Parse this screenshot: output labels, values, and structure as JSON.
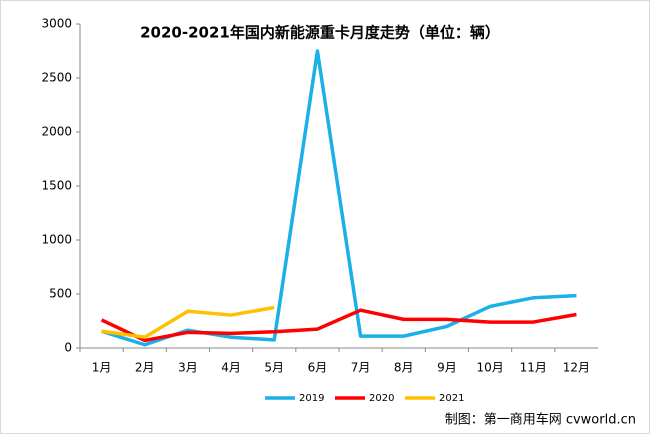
{
  "chart_data": {
    "type": "line",
    "title": "2020-2021年国内新能源重卡月度走势（单位：辆）",
    "categories": [
      "1月",
      "2月",
      "3月",
      "4月",
      "5月",
      "6月",
      "7月",
      "8月",
      "9月",
      "10月",
      "11月",
      "12月"
    ],
    "series": [
      {
        "name": "2019",
        "color": "#1ab0e8",
        "values": [
          155,
          30,
          165,
          100,
          75,
          2750,
          110,
          110,
          200,
          385,
          465,
          485
        ]
      },
      {
        "name": "2020",
        "color": "#ff0000",
        "values": [
          260,
          70,
          145,
          135,
          150,
          175,
          350,
          265,
          265,
          240,
          240,
          310
        ]
      },
      {
        "name": "2021",
        "color": "#ffc000",
        "values": [
          155,
          100,
          340,
          305,
          375,
          null,
          null,
          null,
          null,
          null,
          null,
          null
        ]
      }
    ],
    "ylim": [
      0,
      3000
    ],
    "yticks": [
      0,
      500,
      1000,
      1500,
      2000,
      2500,
      3000
    ],
    "legend": "bottom",
    "source": "制图：第一商用车网 cvworld.cn"
  }
}
